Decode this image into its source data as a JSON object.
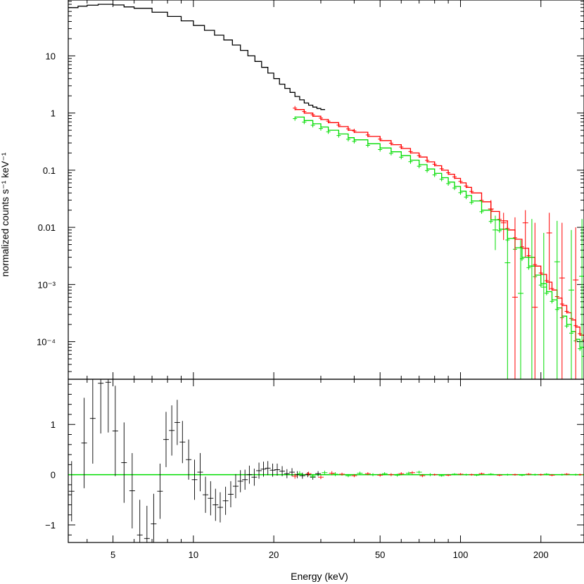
{
  "chart_data": [
    {
      "type": "line",
      "panel": "spectrum",
      "ylabel": "normalized counts s⁻¹ keV⁻¹",
      "xlabel": "",
      "x_scale": "log",
      "y_scale": "log",
      "xlim": [
        3.4,
        290
      ],
      "ylim": [
        2.2e-05,
        95
      ],
      "y_tick_labels": [
        "10",
        "1",
        "0.1",
        "0.01",
        "10⁻³",
        "10⁻⁴"
      ],
      "y_ticks": [
        10,
        1,
        0.1,
        0.01,
        0.001,
        0.0001
      ],
      "series": [
        {
          "color": "#000000",
          "x": [
            3.4,
            3.7,
            4.0,
            4.4,
            4.7,
            5.0,
            5.5,
            6.0,
            7.0,
            8.0,
            9.0,
            10,
            11,
            12,
            13,
            14,
            15,
            16,
            17,
            18,
            19,
            20,
            21,
            22,
            23,
            24,
            25,
            26,
            27,
            28,
            29,
            30
          ],
          "y": [
            70,
            74,
            77,
            80,
            80,
            78,
            72,
            68,
            58,
            49,
            41,
            34,
            28,
            23,
            19,
            15.5,
            12.5,
            10,
            8,
            6.3,
            5,
            4,
            3.2,
            2.7,
            2.3,
            1.95,
            1.7,
            1.5,
            1.37,
            1.27,
            1.2,
            1.15
          ]
        },
        {
          "color": "#ff0000",
          "x": [
            24,
            26,
            28,
            30,
            32,
            35,
            38,
            40,
            45,
            50,
            55,
            60,
            65,
            70,
            75,
            80,
            85,
            90,
            95,
            100,
            105,
            110,
            120,
            130,
            140,
            150,
            160,
            170,
            180,
            190,
            200,
            210,
            220,
            230,
            240,
            250,
            260,
            270,
            280,
            290
          ],
          "y": [
            1.15,
            1.0,
            0.88,
            0.77,
            0.68,
            0.58,
            0.5,
            0.46,
            0.39,
            0.33,
            0.28,
            0.24,
            0.2,
            0.17,
            0.14,
            0.12,
            0.1,
            0.085,
            0.072,
            0.06,
            0.05,
            0.04,
            0.028,
            0.019,
            0.013,
            0.009,
            0.0062,
            0.0043,
            0.003,
            0.0021,
            0.0015,
            0.0011,
            0.0008,
            0.00058,
            0.00043,
            0.00032,
            0.00024,
            0.00018,
            0.00013,
            0.0001
          ]
        },
        {
          "color": "#00dd00",
          "x": [
            24,
            26,
            28,
            30,
            32,
            35,
            38,
            40,
            45,
            50,
            55,
            60,
            65,
            70,
            75,
            80,
            85,
            90,
            95,
            100,
            105,
            110,
            120,
            130,
            140,
            150,
            160,
            170,
            180,
            190,
            200,
            210,
            220,
            230,
            240,
            250,
            260,
            270,
            280,
            290
          ],
          "y": [
            0.85,
            0.74,
            0.65,
            0.57,
            0.5,
            0.43,
            0.37,
            0.34,
            0.29,
            0.245,
            0.21,
            0.18,
            0.15,
            0.125,
            0.105,
            0.088,
            0.074,
            0.062,
            0.052,
            0.043,
            0.036,
            0.029,
            0.02,
            0.0135,
            0.0093,
            0.0064,
            0.0044,
            0.003,
            0.0021,
            0.00146,
            0.00104,
            0.00075,
            0.00054,
            0.00039,
            0.00028,
            0.0002,
            0.00015,
            0.00011,
            8e-05,
            5.9e-05
          ]
        }
      ],
      "points": [
        {
          "color": "#ff0000",
          "x": 130,
          "y": 0.021,
          "yerr_low": 0.014,
          "yerr_high": 0.03
        },
        {
          "color": "#ff0000",
          "x": 145,
          "y": 0.012,
          "yerr_low": 0.006,
          "yerr_high": 0.018
        },
        {
          "color": "#ff0000",
          "x": 160,
          "y": 0.0006,
          "yerr_low": 2e-05,
          "yerr_high": 0.015
        },
        {
          "color": "#ff0000",
          "x": 175,
          "y": 0.012,
          "yerr_low": 0.003,
          "yerr_high": 0.02
        },
        {
          "color": "#ff0000",
          "x": 190,
          "y": 0.0004,
          "yerr_low": 2e-05,
          "yerr_high": 0.012
        },
        {
          "color": "#ff0000",
          "x": 215,
          "y": 0.008,
          "yerr_low": 0.0008,
          "yerr_high": 0.018
        },
        {
          "color": "#ff0000",
          "x": 240,
          "y": 0.0013,
          "yerr_low": 2e-05,
          "yerr_high": 0.012
        },
        {
          "color": "#ff0000",
          "x": 270,
          "y": 0.0012,
          "yerr_low": 2e-05,
          "yerr_high": 0.01
        },
        {
          "color": "#00dd00",
          "x": 135,
          "y": 0.009,
          "yerr_low": 0.004,
          "yerr_high": 0.016
        },
        {
          "color": "#00dd00",
          "x": 150,
          "y": 0.0024,
          "yerr_low": 2e-05,
          "yerr_high": 0.009
        },
        {
          "color": "#00dd00",
          "x": 168,
          "y": 0.0007,
          "yerr_low": 2e-05,
          "yerr_high": 0.006
        },
        {
          "color": "#00dd00",
          "x": 185,
          "y": 0.003,
          "yerr_low": 2e-05,
          "yerr_high": 0.014
        },
        {
          "color": "#00dd00",
          "x": 205,
          "y": 0.0009,
          "yerr_low": 2e-05,
          "yerr_high": 0.008
        },
        {
          "color": "#00dd00",
          "x": 230,
          "y": 0.0025,
          "yerr_low": 2e-05,
          "yerr_high": 0.013
        },
        {
          "color": "#00dd00",
          "x": 260,
          "y": 0.0008,
          "yerr_low": 2e-05,
          "yerr_high": 0.009
        },
        {
          "color": "#00dd00",
          "x": 285,
          "y": 0.0014,
          "yerr_low": 2e-05,
          "yerr_high": 0.014
        }
      ]
    },
    {
      "type": "scatter",
      "panel": "residuals",
      "xlabel": "Energy (keV)",
      "ylabel": "",
      "x_scale": "log",
      "y_scale": "linear",
      "xlim": [
        3.4,
        290
      ],
      "ylim": [
        -1.35,
        1.9
      ],
      "x_ticks": [
        5,
        10,
        20,
        50,
        100,
        200
      ],
      "x_tick_labels": [
        "5",
        "10",
        "20",
        "50",
        "100",
        "200"
      ],
      "y_ticks": [
        1,
        0,
        -1
      ],
      "y_tick_labels": [
        "1",
        "0",
        "−1"
      ],
      "zero_line_color": "#00dd00",
      "series": [
        {
          "color": "#000000",
          "x": [
            3.5,
            3.9,
            4.2,
            4.5,
            4.8,
            5.1,
            5.5,
            5.9,
            6.3,
            6.7,
            7.1,
            7.5,
            7.9,
            8.3,
            8.7,
            9.1,
            9.6,
            10.1,
            10.6,
            11.1,
            11.6,
            12.1,
            12.6,
            13.2,
            13.8,
            14.4,
            15.0,
            15.6,
            16.2,
            16.9,
            17.6,
            18.3,
            19.0,
            19.8,
            20.6,
            21.5,
            22.4,
            23.4,
            24.5,
            25.6,
            26.8,
            28.0,
            29.3
          ],
          "y": [
            -0.33,
            0.63,
            1.12,
            1.82,
            1.84,
            0.87,
            0.24,
            -0.32,
            -1.2,
            -1.27,
            -0.98,
            -0.33,
            0.7,
            0.88,
            1.04,
            0.65,
            0.3,
            -0.1,
            0.05,
            -0.4,
            -0.47,
            -0.6,
            -0.65,
            -0.52,
            -0.39,
            -0.23,
            -0.13,
            -0.1,
            0.0,
            -0.05,
            0.08,
            0.11,
            0.13,
            0.09,
            0.1,
            0.07,
            0.02,
            0.05,
            0.0,
            -0.02,
            0.0,
            -0.05,
            0.02
          ],
          "yerr": [
            0.6,
            0.9,
            0.9,
            1.0,
            1.0,
            0.9,
            0.8,
            0.75,
            0.7,
            0.65,
            0.6,
            0.55,
            0.55,
            0.5,
            0.45,
            0.42,
            0.4,
            0.4,
            0.38,
            0.36,
            0.34,
            0.32,
            0.3,
            0.28,
            0.26,
            0.24,
            0.22,
            0.2,
            0.18,
            0.17,
            0.16,
            0.15,
            0.14,
            0.13,
            0.12,
            0.1,
            0.09,
            0.08,
            0.07,
            0.06,
            0.05,
            0.05,
            0.05
          ]
        },
        {
          "color": "#ff0000",
          "x": [
            24,
            27,
            30,
            33,
            36,
            40,
            45,
            50,
            55,
            60,
            66,
            72,
            80,
            90,
            100,
            110,
            120,
            140,
            160,
            180,
            200,
            220,
            250,
            280
          ],
          "y": [
            -0.03,
            0.02,
            -0.05,
            0.03,
            0.01,
            -0.02,
            0.02,
            -0.01,
            0.0,
            0.02,
            0.04,
            -0.02,
            0.0,
            -0.01,
            0.01,
            0.0,
            0.02,
            -0.01,
            0.0,
            0.01,
            0.0,
            -0.01,
            0.01,
            0.0
          ],
          "yerr": [
            0.05,
            0.04,
            0.04,
            0.04,
            0.03,
            0.03,
            0.03,
            0.03,
            0.03,
            0.03,
            0.03,
            0.03,
            0.02,
            0.02,
            0.02,
            0.02,
            0.02,
            0.02,
            0.02,
            0.02,
            0.02,
            0.02,
            0.02,
            0.02
          ]
        },
        {
          "color": "#00dd00",
          "x": [
            25,
            28,
            31,
            34,
            38,
            42,
            47,
            52,
            58,
            64,
            70,
            77,
            85,
            95,
            105,
            115,
            130,
            150,
            170,
            190,
            210,
            240,
            270
          ],
          "y": [
            0.02,
            -0.03,
            0.04,
            0.01,
            -0.02,
            0.03,
            0.0,
            0.02,
            -0.01,
            0.03,
            0.05,
            0.0,
            -0.02,
            0.01,
            0.0,
            -0.01,
            0.01,
            0.0,
            -0.01,
            0.0,
            0.01,
            0.0,
            0.0
          ],
          "yerr": [
            0.05,
            0.04,
            0.04,
            0.04,
            0.03,
            0.03,
            0.03,
            0.03,
            0.03,
            0.03,
            0.03,
            0.03,
            0.02,
            0.02,
            0.02,
            0.02,
            0.02,
            0.02,
            0.02,
            0.02,
            0.02,
            0.02,
            0.02
          ]
        }
      ]
    }
  ]
}
